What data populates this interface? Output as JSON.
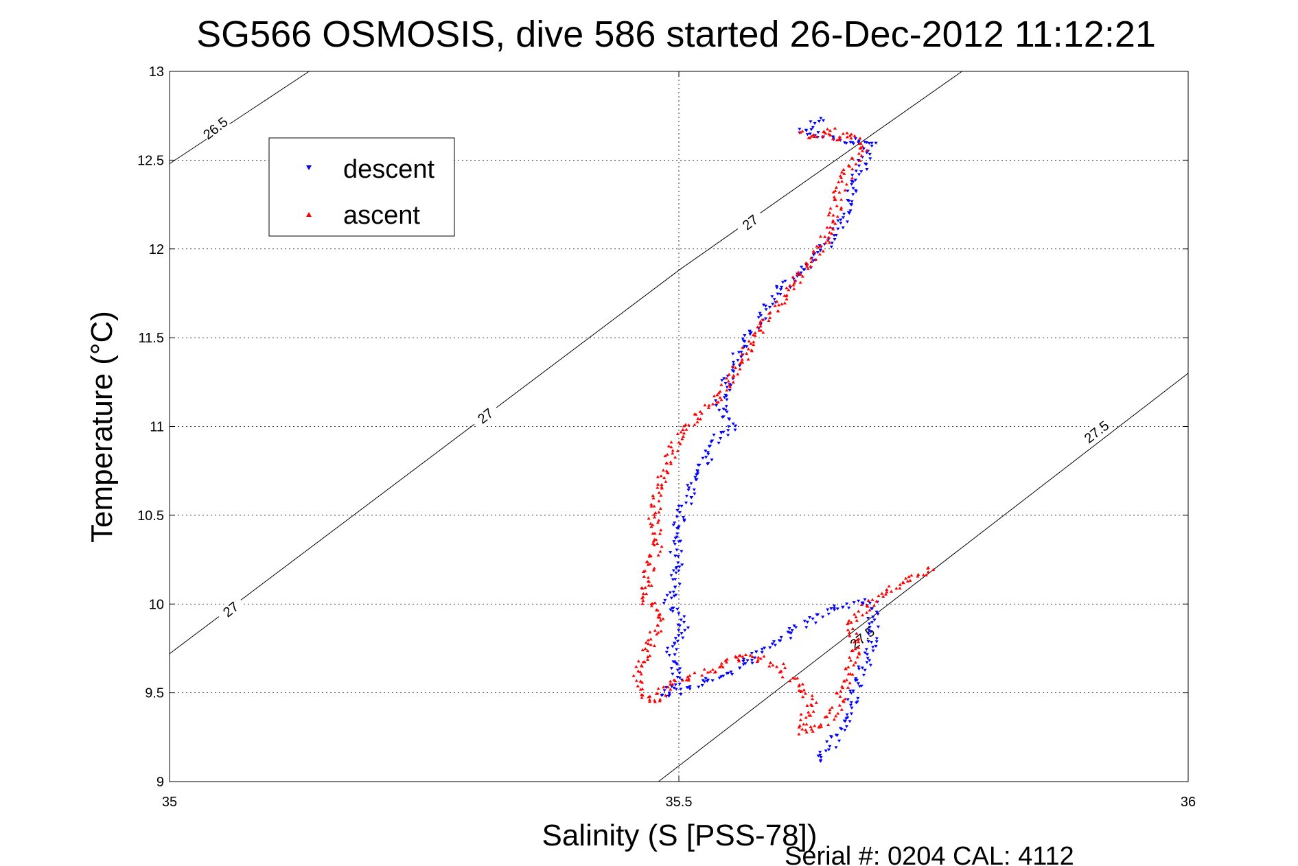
{
  "chart_data": {
    "type": "scatter",
    "title": "SG566 OSMOSIS, dive 586 started 26-Dec-2012 11:12:21",
    "xlabel": "Salinity (S [PSS-78])",
    "ylabel": "Temperature (°C)",
    "footer": "Serial #: 0204  CAL: 4112",
    "xlim": [
      35,
      36
    ],
    "ylim": [
      9,
      13
    ],
    "xticks": [
      "35",
      "35.5",
      "36"
    ],
    "yticks": [
      "9",
      "9.5",
      "10",
      "10.5",
      "11",
      "11.5",
      "12",
      "12.5",
      "13"
    ],
    "grid": true,
    "legend_position": "top-left",
    "density_contours": [
      {
        "label": "26.5",
        "points": [
          [
            35.0,
            12.48
          ],
          [
            35.137,
            13.0
          ]
        ]
      },
      {
        "label": "27",
        "points": [
          [
            35.0,
            9.72
          ],
          [
            35.5,
            11.88
          ],
          [
            35.778,
            13.0
          ]
        ]
      },
      {
        "label": "27.5",
        "points": [
          [
            35.48,
            9.0
          ],
          [
            36.0,
            11.3
          ]
        ]
      }
    ],
    "contour_label_positions": [
      {
        "label": "26.5",
        "at": [
          35.045,
          12.68
        ]
      },
      {
        "label": "27",
        "at": [
          35.06,
          9.97
        ]
      },
      {
        "label": "27",
        "at": [
          35.31,
          11.06
        ]
      },
      {
        "label": "27",
        "at": [
          35.57,
          12.15
        ]
      },
      {
        "label": "27.5",
        "at": [
          35.68,
          9.81
        ]
      },
      {
        "label": "27.5",
        "at": [
          35.91,
          10.97
        ]
      }
    ],
    "series": [
      {
        "name": "descent",
        "color": "#0000ff",
        "marker": "triangle-down",
        "path": [
          [
            35.64,
            12.73
          ],
          [
            35.62,
            12.66
          ],
          [
            35.67,
            12.6
          ],
          [
            35.68,
            12.62
          ],
          [
            35.69,
            12.6
          ],
          [
            35.675,
            12.4
          ],
          [
            35.665,
            12.2
          ],
          [
            35.65,
            12.05
          ],
          [
            35.625,
            11.9
          ],
          [
            35.6,
            11.78
          ],
          [
            35.58,
            11.6
          ],
          [
            35.565,
            11.48
          ],
          [
            35.555,
            11.35
          ],
          [
            35.545,
            11.22
          ],
          [
            35.54,
            11.1
          ],
          [
            35.555,
            11.0
          ],
          [
            35.54,
            10.95
          ],
          [
            35.53,
            10.85
          ],
          [
            35.515,
            10.7
          ],
          [
            35.505,
            10.55
          ],
          [
            35.495,
            10.4
          ],
          [
            35.5,
            10.2
          ],
          [
            35.49,
            10.0
          ],
          [
            35.505,
            9.88
          ],
          [
            35.49,
            9.7
          ],
          [
            35.5,
            9.58
          ],
          [
            35.485,
            9.48
          ],
          [
            35.55,
            9.62
          ],
          [
            35.6,
            9.8
          ],
          [
            35.65,
            9.98
          ],
          [
            35.69,
            10.02
          ],
          [
            35.69,
            9.8
          ],
          [
            35.68,
            9.6
          ],
          [
            35.67,
            9.45
          ],
          [
            35.655,
            9.25
          ],
          [
            35.635,
            9.1
          ]
        ],
        "count": 480
      },
      {
        "name": "ascent",
        "color": "#ff0000",
        "marker": "triangle-up",
        "path": [
          [
            35.75,
            10.2
          ],
          [
            35.72,
            10.12
          ],
          [
            35.69,
            10.02
          ],
          [
            35.68,
            9.95
          ],
          [
            35.67,
            9.9
          ],
          [
            35.675,
            9.78
          ],
          [
            35.665,
            9.6
          ],
          [
            35.655,
            9.42
          ],
          [
            35.645,
            9.32
          ],
          [
            35.62,
            9.28
          ],
          [
            35.63,
            9.45
          ],
          [
            35.6,
            9.65
          ],
          [
            35.565,
            9.72
          ],
          [
            35.53,
            9.62
          ],
          [
            35.49,
            9.55
          ],
          [
            35.475,
            9.45
          ],
          [
            35.46,
            9.5
          ],
          [
            35.46,
            9.65
          ],
          [
            35.475,
            9.8
          ],
          [
            35.48,
            9.95
          ],
          [
            35.465,
            10.05
          ],
          [
            35.47,
            10.2
          ],
          [
            35.48,
            10.35
          ],
          [
            35.475,
            10.5
          ],
          [
            35.48,
            10.65
          ],
          [
            35.49,
            10.8
          ],
          [
            35.5,
            10.95
          ],
          [
            35.52,
            11.05
          ],
          [
            35.53,
            11.12
          ],
          [
            35.545,
            11.22
          ],
          [
            35.56,
            11.35
          ],
          [
            35.575,
            11.5
          ],
          [
            35.59,
            11.62
          ],
          [
            35.61,
            11.78
          ],
          [
            35.625,
            11.9
          ],
          [
            35.64,
            12.0
          ],
          [
            35.65,
            12.12
          ],
          [
            35.655,
            12.28
          ],
          [
            35.665,
            12.42
          ],
          [
            35.68,
            12.55
          ],
          [
            35.67,
            12.65
          ],
          [
            35.655,
            12.62
          ],
          [
            35.65,
            12.68
          ],
          [
            35.63,
            12.62
          ],
          [
            35.62,
            12.66
          ]
        ],
        "count": 540
      }
    ]
  }
}
